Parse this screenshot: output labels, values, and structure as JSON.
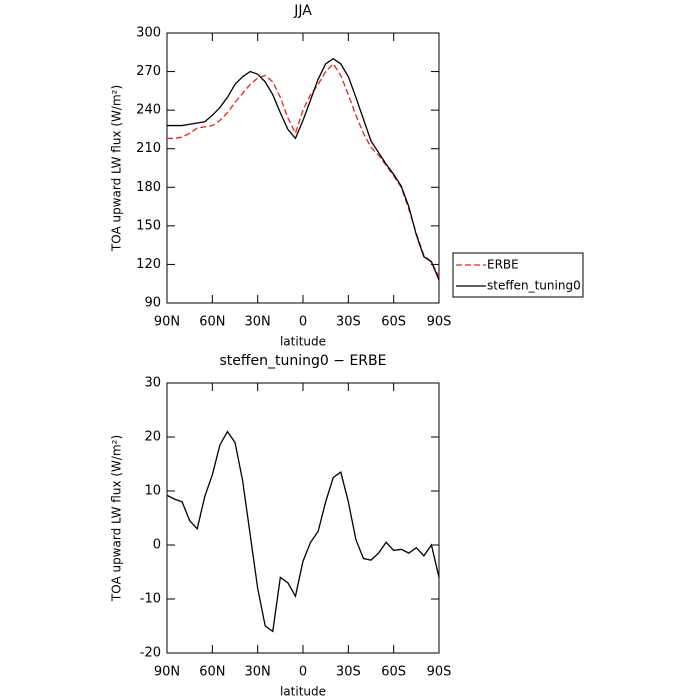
{
  "chart_data": [
    {
      "type": "line",
      "title": "JJA",
      "x_label": "latitude",
      "y_label": "TOA upward LW flux (W/m²)",
      "x": [
        90,
        85,
        80,
        75,
        70,
        65,
        60,
        55,
        50,
        45,
        40,
        35,
        30,
        25,
        20,
        15,
        10,
        5,
        0,
        -5,
        -10,
        -15,
        -20,
        -25,
        -30,
        -35,
        -40,
        -45,
        -50,
        -55,
        -60,
        -65,
        -70,
        -75,
        -80,
        -85,
        -90
      ],
      "series": [
        {
          "name": "ERBE",
          "color": "#e3261f",
          "dashed": true,
          "values": [
            218,
            218,
            219,
            222,
            226,
            227,
            228,
            232,
            238,
            246,
            253,
            260,
            265,
            267,
            262,
            250,
            234,
            222,
            240,
            252,
            260,
            270,
            276,
            267,
            252,
            236,
            222,
            211,
            205,
            197,
            189,
            180,
            163,
            144,
            127,
            122,
            110
          ]
        },
        {
          "name": "steffen_tuning0",
          "color": "#000000",
          "dashed": false,
          "values": [
            228,
            228,
            228,
            229,
            230,
            231,
            236,
            242,
            250,
            260,
            266,
            270,
            268,
            262,
            252,
            238,
            225,
            218,
            232,
            248,
            264,
            276,
            280,
            276,
            266,
            250,
            233,
            216,
            207,
            198,
            190,
            181,
            165,
            143,
            126,
            122,
            108
          ]
        }
      ],
      "xlim": [
        90,
        -90
      ],
      "xticks": [
        {
          "value": 90,
          "label": "90N"
        },
        {
          "value": 60,
          "label": "60N"
        },
        {
          "value": 30,
          "label": "30N"
        },
        0,
        {
          "value": -30,
          "label": "30S"
        },
        {
          "value": -60,
          "label": "60S"
        },
        {
          "value": -90,
          "label": "90S"
        }
      ],
      "ylim": [
        90,
        300
      ],
      "yticks": [
        90,
        120,
        150,
        180,
        210,
        240,
        270,
        300
      ],
      "legend": "right"
    },
    {
      "type": "line",
      "title": "steffen_tuning0 − ERBE",
      "x_label": "latitude",
      "y_label": "TOA upward LW flux (W/m²)",
      "x": [
        90,
        85,
        80,
        75,
        70,
        65,
        60,
        55,
        50,
        45,
        40,
        35,
        30,
        25,
        20,
        15,
        10,
        5,
        0,
        -5,
        -10,
        -15,
        -20,
        -25,
        -30,
        -35,
        -40,
        -45,
        -50,
        -55,
        -60,
        -65,
        -70,
        -75,
        -80,
        -85,
        -90
      ],
      "values": [
        9.2,
        8.5,
        8,
        4.5,
        3,
        9,
        13,
        18.5,
        21,
        19,
        12,
        2,
        -8,
        -15,
        -16,
        -6,
        -7,
        -9.5,
        -3,
        0.5,
        2.5,
        8,
        12.5,
        13.5,
        8,
        1,
        -2.5,
        -2.8,
        -1.5,
        0.5,
        -1,
        -0.8,
        -1.5,
        -0.5,
        -2,
        0,
        -6
      ],
      "color": "#000000",
      "xlim": [
        90,
        -90
      ],
      "xticks": [
        {
          "value": 90,
          "label": "90N"
        },
        {
          "value": 60,
          "label": "60N"
        },
        {
          "value": 30,
          "label": "30N"
        },
        0,
        {
          "value": -30,
          "label": "30S"
        },
        {
          "value": -60,
          "label": "60S"
        },
        {
          "value": -90,
          "label": "90S"
        }
      ],
      "ylim": [
        -20,
        30
      ],
      "yticks": [
        -20,
        -10,
        0,
        10,
        20,
        30
      ]
    }
  ]
}
